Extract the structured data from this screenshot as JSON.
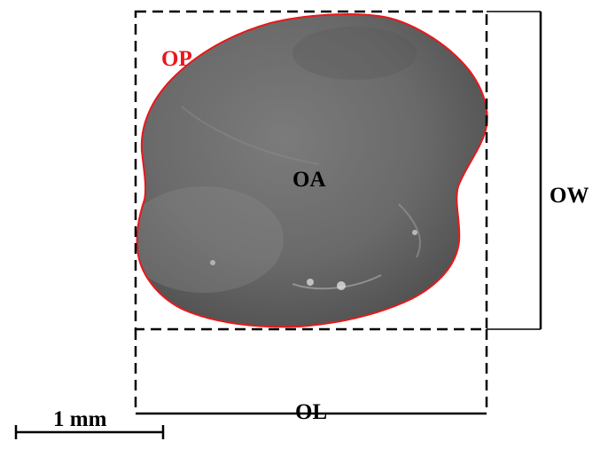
{
  "labels": {
    "perimeter": "OP",
    "area": "OA",
    "width": "OW",
    "length": "OL",
    "scale": "1 mm"
  },
  "colors": {
    "outline": "#e8181c",
    "dimension": "#000000",
    "specimen": "#6f6f6f",
    "perimeter_label": "#e8181c",
    "text": "#000000"
  }
}
